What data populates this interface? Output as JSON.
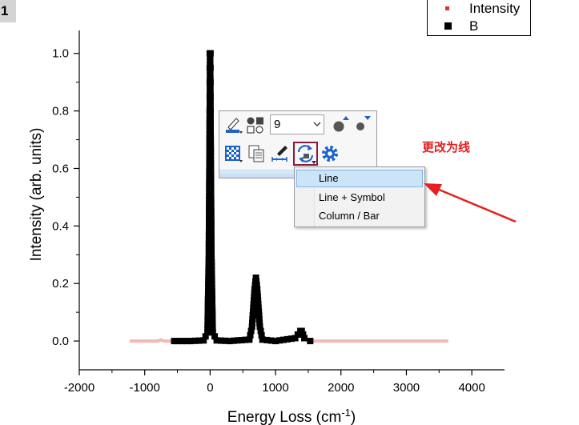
{
  "layer_badge": "1",
  "chart_data": {
    "type": "scatter",
    "xlabel": "Energy Loss (cm",
    "xlabel_sup": "-1",
    "xlabel_close": ")",
    "ylabel": "Intensity (arb. units)",
    "xlim": [
      -2000,
      4500
    ],
    "ylim": [
      -0.1,
      1.08
    ],
    "xticks": [
      -2000,
      -1000,
      0,
      1000,
      2000,
      3000,
      4000
    ],
    "xtick_labels": [
      "-2000",
      "-1000",
      "0",
      "1000",
      "2000",
      "3000",
      "4000"
    ],
    "yticks": [
      0.0,
      0.2,
      0.4,
      0.6,
      0.8,
      1.0
    ],
    "ytick_labels": [
      "0.0",
      "0.2",
      "0.4",
      "0.6",
      "0.8",
      "1.0"
    ],
    "legend_position": "top-right",
    "series": [
      {
        "name": "Intensity",
        "color": "#f4b8b4",
        "style": "line",
        "x": [
          -1230,
          -800,
          -750,
          -700,
          -600,
          -300,
          -100,
          -40,
          -20,
          0,
          20,
          40,
          100,
          300,
          600,
          640,
          680,
          700,
          720,
          760,
          800,
          1000,
          1300,
          1380,
          1400,
          1440,
          1500,
          2000,
          3000,
          3640
        ],
        "y": [
          0.0,
          0.0,
          0.004,
          0.0,
          0.0,
          0.0,
          0.002,
          0.03,
          0.3,
          1.0,
          0.3,
          0.03,
          0.002,
          0.0,
          0.005,
          0.05,
          0.18,
          0.22,
          0.18,
          0.05,
          0.005,
          0.0,
          0.01,
          0.035,
          0.035,
          0.01,
          0.0,
          0.0,
          0.0,
          0.0
        ]
      },
      {
        "name": "B",
        "color": "#000000",
        "style": "square-symbols",
        "x": [
          -550,
          -300,
          -100,
          -40,
          -20,
          0,
          20,
          40,
          100,
          300,
          600,
          640,
          680,
          700,
          720,
          760,
          800,
          1000,
          1300,
          1380,
          1400,
          1440,
          1530
        ],
        "y": [
          0.0,
          0.0,
          0.002,
          0.03,
          0.3,
          1.0,
          0.3,
          0.03,
          0.002,
          0.0,
          0.005,
          0.05,
          0.18,
          0.22,
          0.18,
          0.05,
          0.005,
          0.0,
          0.01,
          0.035,
          0.035,
          0.01,
          0.0
        ]
      }
    ]
  },
  "toolbar": {
    "symbol_size": "9"
  },
  "menu": {
    "items": [
      {
        "label": "Line"
      },
      {
        "label": "Line + Symbol"
      },
      {
        "label": "Column / Bar"
      }
    ]
  },
  "annotation": {
    "text": "更改为线",
    "color": "#e02020"
  }
}
